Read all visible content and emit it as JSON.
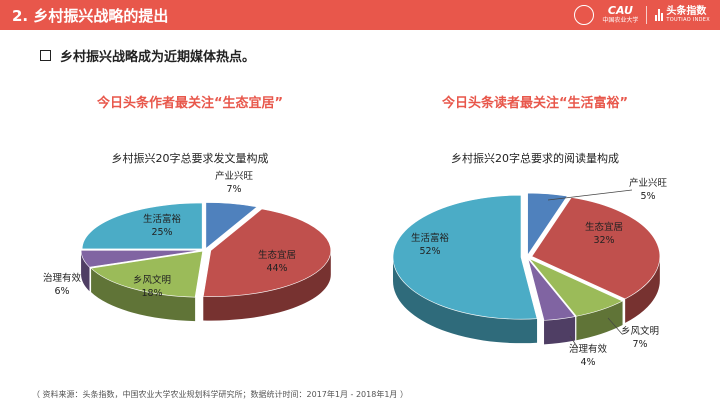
{
  "header": {
    "title": "2. 乡村振兴战略的提出",
    "logo_cau_text": "中国农业大学",
    "logo_toutiao_name": "头条指数",
    "logo_toutiao_en": "TOUTIAO INDEX"
  },
  "bullet": "乡村振兴战略成为近期媒体热点。",
  "subtitle_left": "今日头条作者最关注“生态宜居”",
  "subtitle_right": "今日头条读者最关注“生活富裕”",
  "footer": "（ 资料来源：头条指数，中国农业大学农业规划科学研究所；数据统计时间：2017年1月 - 2018年1月 ）",
  "chart_data": [
    {
      "type": "pie",
      "title": "乡村振兴20字总要求发文量构成",
      "categories": [
        "产业兴旺",
        "生态宜居",
        "乡风文明",
        "治理有效",
        "生活富裕"
      ],
      "values": [
        7,
        44,
        18,
        6,
        25
      ],
      "labels": [
        "7%",
        "44%",
        "18%",
        "6%",
        "25%"
      ],
      "colors": [
        "#4f81bd",
        "#c0504d",
        "#9bbb59",
        "#8064a2",
        "#4bacc6"
      ]
    },
    {
      "type": "pie",
      "title": "乡村振兴20字总要求的阅读量构成",
      "categories": [
        "产业兴旺",
        "生态宜居",
        "乡风文明",
        "治理有效",
        "生活富裕"
      ],
      "values": [
        5,
        32,
        7,
        4,
        52
      ],
      "labels": [
        "5%",
        "32%",
        "7%",
        "4%",
        "52%"
      ],
      "colors": [
        "#4f81bd",
        "#c0504d",
        "#9bbb59",
        "#8064a2",
        "#4bacc6"
      ]
    }
  ]
}
